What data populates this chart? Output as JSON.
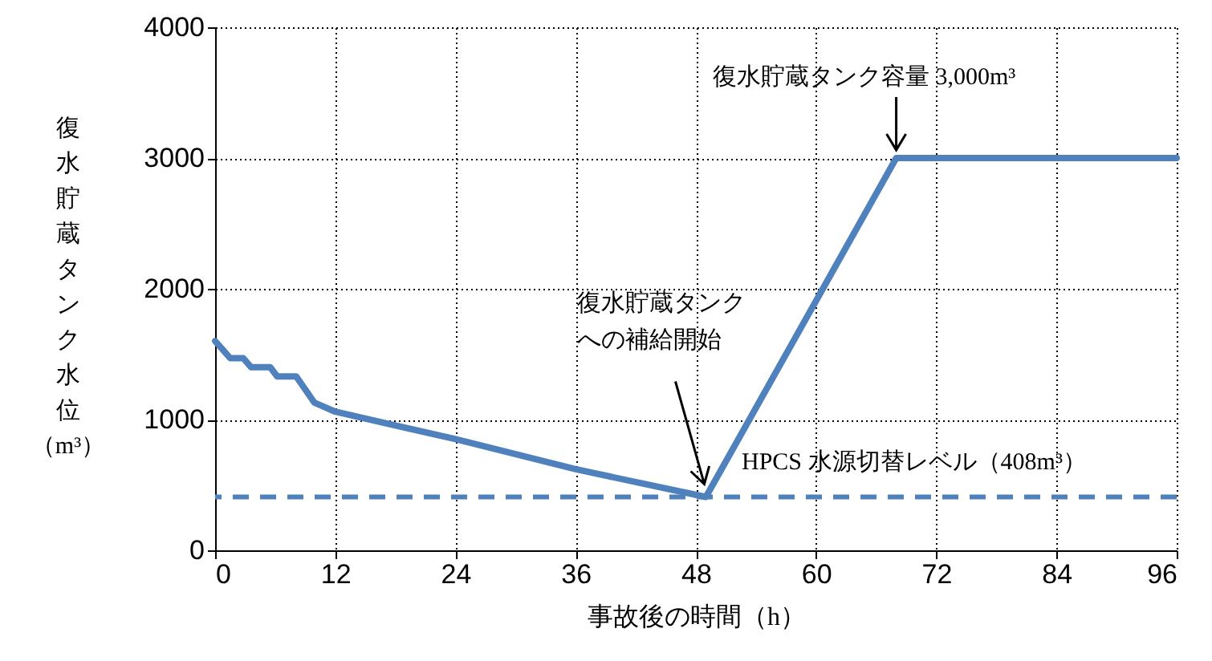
{
  "chart_data": {
    "type": "line",
    "xlabel": "事故後の時間（h）",
    "ylabel": "復水貯蔵タンク水位（m³）",
    "x": [
      0,
      1.5,
      2.8,
      3.6,
      5.5,
      6.2,
      8.1,
      9.9,
      12,
      24,
      36,
      49,
      68,
      96
    ],
    "series": [
      {
        "color": "#4f81bd",
        "values": [
          1600,
          1470,
          1470,
          1400,
          1400,
          1330,
          1330,
          1130,
          1060,
          850,
          620,
          408,
          3000,
          3000
        ]
      }
    ],
    "xlim": [
      0,
      96
    ],
    "xticks": [
      0,
      12,
      24,
      36,
      48,
      60,
      72,
      84,
      96
    ],
    "ylim": [
      0,
      4000
    ],
    "yticks": [
      0,
      1000,
      2000,
      3000,
      4000
    ],
    "grid": true,
    "marker": "none",
    "line_style": "solid",
    "ref_lines": [
      {
        "axis": "y",
        "value": 408,
        "label": "HPCS 水源切替レベル（408m³）",
        "color": "#4f81bd",
        "line_style": "dashed"
      }
    ],
    "annotations": [
      {
        "text": "復水貯蔵タンク容量 3,000m³",
        "x": 68,
        "y": 3000
      },
      {
        "text": "復水貯蔵タンクへの補給開始",
        "x": 49,
        "y": 408
      }
    ]
  }
}
